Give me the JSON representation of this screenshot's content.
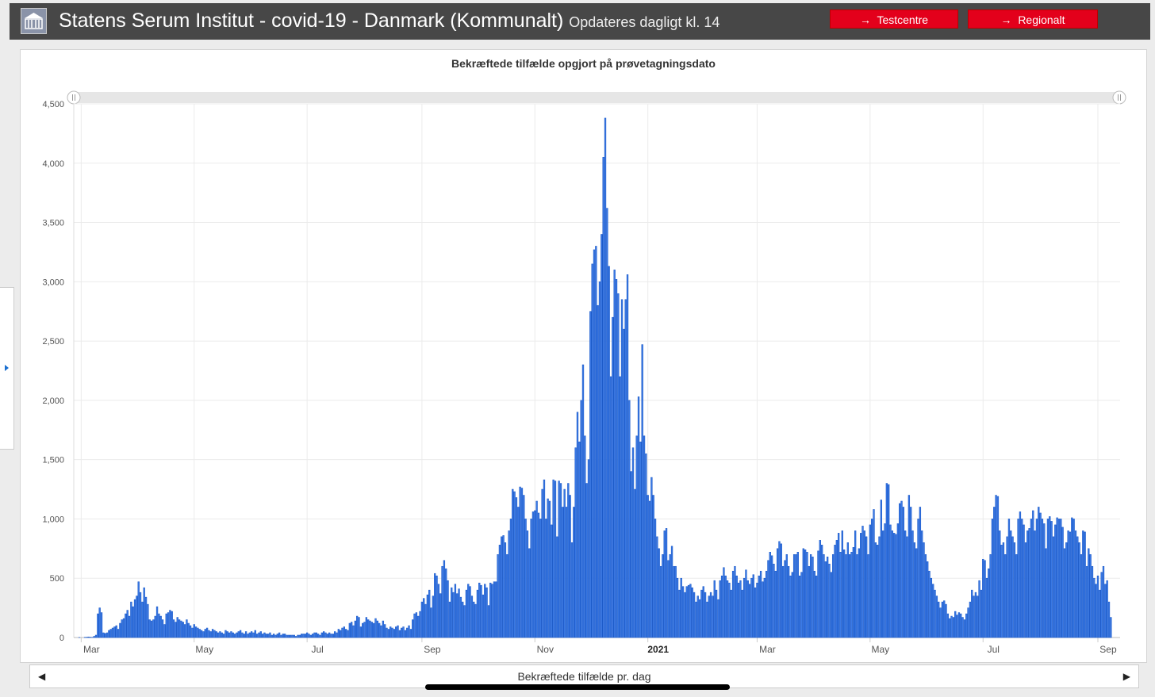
{
  "header": {
    "title": "Statens Serum Institut - covid-19 - Danmark (Kommunalt)",
    "subtitle": "Opdateres dagligt kl. 14",
    "buttons": [
      {
        "label": "Testcentre",
        "icon": "arrow-right-icon"
      },
      {
        "label": "Regionalt",
        "icon": "arrow-right-icon"
      }
    ]
  },
  "colors": {
    "header_bg": "#474747",
    "button": "#e3001b",
    "bar_fill": "#3b7ae6",
    "bar_stroke": "#1d5bc9"
  },
  "footer": {
    "series_label": "Bekræftede tilfælde pr. dag"
  },
  "chart_data": {
    "type": "bar",
    "title": "Bekræftede tilfælde opgjort på prøvetagningsdato",
    "xlabel": "",
    "ylabel": "",
    "ylim": [
      0,
      4500
    ],
    "yticks": [
      {
        "v": 0,
        "label": "0"
      },
      {
        "v": 500,
        "label": "500"
      },
      {
        "v": 1000,
        "label": "1,000"
      },
      {
        "v": 1500,
        "label": "1,500"
      },
      {
        "v": 2000,
        "label": "2,000"
      },
      {
        "v": 2500,
        "label": "2,500"
      },
      {
        "v": 3000,
        "label": "3,000"
      },
      {
        "v": 3500,
        "label": "3,500"
      },
      {
        "v": 4000,
        "label": "4,000"
      },
      {
        "v": 4500,
        "label": "4,500"
      }
    ],
    "xticks": [
      {
        "date": "2020-03-01",
        "label": "Mar"
      },
      {
        "date": "2020-05-01",
        "label": "May"
      },
      {
        "date": "2020-07-01",
        "label": "Jul"
      },
      {
        "date": "2020-09-01",
        "label": "Sep"
      },
      {
        "date": "2020-11-01",
        "label": "Nov"
      },
      {
        "date": "2021-01-01",
        "label": "2021",
        "bold": true
      },
      {
        "date": "2021-03-01",
        "label": "Mar"
      },
      {
        "date": "2021-05-01",
        "label": "May"
      },
      {
        "date": "2021-07-01",
        "label": "Jul"
      },
      {
        "date": "2021-09-01",
        "label": "Sep"
      }
    ],
    "grid": true,
    "start_date": "2020-02-28",
    "x_range": [
      "2020-02-26",
      "2021-09-13"
    ],
    "values": [
      0,
      1,
      0,
      0,
      2,
      3,
      5,
      3,
      2,
      10,
      20,
      200,
      250,
      210,
      40,
      35,
      40,
      60,
      70,
      80,
      90,
      100,
      70,
      120,
      150,
      160,
      200,
      230,
      180,
      300,
      260,
      320,
      350,
      470,
      380,
      300,
      420,
      340,
      280,
      150,
      140,
      150,
      180,
      260,
      200,
      180,
      150,
      110,
      200,
      210,
      230,
      220,
      150,
      130,
      170,
      150,
      140,
      130,
      110,
      150,
      120,
      100,
      80,
      110,
      90,
      80,
      70,
      60,
      50,
      70,
      80,
      60,
      50,
      70,
      60,
      50,
      40,
      50,
      40,
      30,
      60,
      50,
      40,
      50,
      40,
      30,
      40,
      50,
      60,
      40,
      30,
      50,
      30,
      40,
      50,
      40,
      60,
      30,
      40,
      50,
      30,
      40,
      30,
      30,
      40,
      20,
      30,
      20,
      30,
      40,
      20,
      30,
      30,
      20,
      20,
      20,
      20,
      20,
      10,
      20,
      20,
      30,
      30,
      30,
      40,
      30,
      20,
      30,
      40,
      40,
      30,
      20,
      40,
      50,
      40,
      30,
      40,
      30,
      30,
      50,
      40,
      70,
      60,
      80,
      90,
      70,
      60,
      120,
      130,
      100,
      140,
      180,
      170,
      90,
      120,
      130,
      170,
      150,
      140,
      130,
      120,
      160,
      140,
      120,
      100,
      140,
      110,
      80,
      70,
      90,
      80,
      70,
      90,
      100,
      60,
      80,
      90,
      60,
      80,
      100,
      70,
      150,
      200,
      210,
      180,
      220,
      300,
      330,
      280,
      360,
      400,
      250,
      350,
      540,
      520,
      450,
      370,
      600,
      650,
      580,
      480,
      300,
      420,
      380,
      450,
      370,
      410,
      340,
      300,
      270,
      400,
      450,
      430,
      350,
      300,
      280,
      400,
      460,
      440,
      360,
      450,
      420,
      270,
      460,
      450,
      470,
      470,
      700,
      780,
      850,
      860,
      800,
      700,
      900,
      1000,
      1250,
      1230,
      1180,
      1100,
      1270,
      1260,
      1200,
      1000,
      900,
      750,
      1000,
      1060,
      1070,
      1150,
      1050,
      1000,
      1250,
      1330,
      1000,
      1170,
      1150,
      950,
      1330,
      1320,
      850,
      1320,
      1300,
      1100,
      1250,
      1100,
      1300,
      1200,
      800,
      1100,
      1600,
      1900,
      1650,
      2000,
      2300,
      1700,
      1300,
      1500,
      2750,
      3150,
      3270,
      3300,
      2800,
      3000,
      3400,
      4050,
      4380,
      3620,
      3130,
      2200,
      2700,
      3100,
      3020,
      2900,
      2200,
      2850,
      2600,
      2850,
      3060,
      2000,
      1400,
      1600,
      1250,
      1700,
      2030,
      1650,
      2470,
      1700,
      1550,
      1200,
      1150,
      1350,
      1200,
      1000,
      850,
      750,
      600,
      700,
      900,
      920,
      650,
      700,
      770,
      600,
      600,
      500,
      400,
      500,
      430,
      380,
      430,
      440,
      450,
      420,
      380,
      300,
      350,
      320,
      400,
      430,
      380,
      300,
      350,
      380,
      350,
      480,
      400,
      320,
      480,
      520,
      590,
      520,
      480,
      460,
      400,
      560,
      600,
      520,
      460,
      480,
      400,
      500,
      570,
      480,
      450,
      500,
      530,
      420,
      460,
      520,
      560,
      470,
      500,
      560,
      650,
      720,
      690,
      620,
      560,
      750,
      810,
      790,
      600,
      650,
      700,
      600,
      520,
      550,
      700,
      700,
      720,
      520,
      550,
      750,
      740,
      720,
      600,
      700,
      680,
      560,
      520,
      730,
      820,
      780,
      700,
      640,
      680,
      620,
      550,
      700,
      780,
      820,
      880,
      720,
      900,
      740,
      700,
      800,
      700,
      720,
      760,
      900,
      700,
      750,
      880,
      940,
      900,
      850,
      700,
      950,
      1000,
      1080,
      800,
      780,
      850,
      1160,
      900,
      960,
      1300,
      1290,
      950,
      900,
      880,
      870,
      960,
      1130,
      1150,
      1100,
      900,
      850,
      1200,
      1100,
      900,
      800,
      750,
      1000,
      1100,
      900,
      800,
      700,
      640,
      560,
      500,
      450,
      400,
      350,
      300,
      250,
      300,
      310,
      280,
      200,
      160,
      180,
      170,
      220,
      190,
      210,
      200,
      170,
      150,
      200,
      250,
      300,
      400,
      350,
      380,
      350,
      480,
      400,
      660,
      650,
      500,
      580,
      700,
      1000,
      1100,
      1200,
      1190,
      900,
      780,
      800,
      700,
      850,
      1000,
      900,
      850,
      800,
      700,
      1000,
      1060,
      1000,
      950,
      800,
      900,
      920,
      1000,
      1070,
      900,
      1000,
      1100,
      1050,
      1000,
      960,
      750,
      1000,
      1020,
      980,
      850,
      950,
      1010,
      1000,
      1000,
      930,
      750,
      800,
      900,
      890,
      1010,
      1000,
      900,
      850,
      800,
      700,
      900,
      890,
      600,
      750,
      700,
      600,
      500,
      450,
      520,
      400,
      550,
      600,
      450,
      480,
      300,
      170
    ]
  }
}
